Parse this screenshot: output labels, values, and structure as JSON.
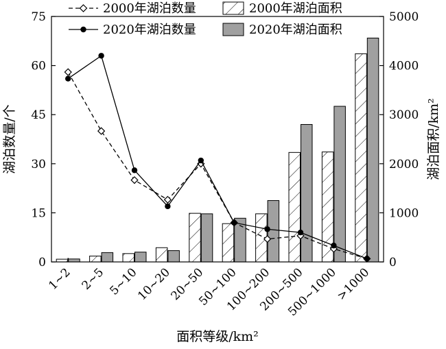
{
  "chart_data": {
    "type": "bar+line",
    "xlabel": "面积等级/km²",
    "ylabel_left": "湖泊数量/个",
    "ylabel_right": "湖泊面积/km²",
    "categories": [
      "1~2",
      "2~5",
      "5~10",
      "10~20",
      "20~50",
      "50~100",
      "100~200",
      "200~500",
      "500~1000",
      ">1000"
    ],
    "ylim_left": [
      0,
      75
    ],
    "yticks_left": [
      "0",
      "15",
      "30",
      "45",
      "60",
      "75"
    ],
    "ylim_right": [
      0,
      5000
    ],
    "yticks_right": [
      "0",
      "1000",
      "2000",
      "3000",
      "4000",
      "5000"
    ],
    "legend_position": "top",
    "bar_series": [
      {
        "name": "2000年湖泊面积",
        "style": "hatched",
        "values": [
          55,
          120,
          170,
          290,
          990,
          780,
          980,
          2230,
          2240,
          4240
        ]
      },
      {
        "name": "2020年湖泊面积",
        "style": "gray",
        "color": "#a0a0a0",
        "values": [
          60,
          190,
          200,
          230,
          980,
          890,
          1250,
          2800,
          3170,
          4560
        ]
      }
    ],
    "line_series": [
      {
        "name": "2000年湖泊数量",
        "style": "dashed",
        "marker": "diamond-open",
        "values": [
          58,
          40,
          25,
          19,
          30,
          12,
          7,
          8,
          4,
          1
        ]
      },
      {
        "name": "2020年湖泊数量",
        "style": "solid",
        "marker": "circle-filled",
        "values": [
          56,
          63,
          28,
          17,
          31,
          12,
          10,
          9,
          5,
          1
        ]
      }
    ]
  }
}
